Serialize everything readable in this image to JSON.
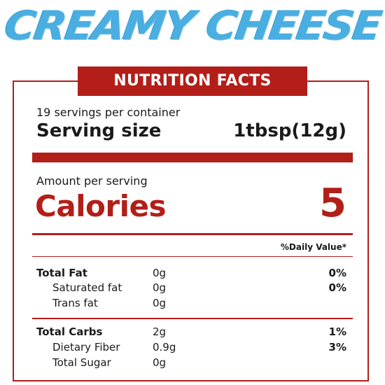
{
  "product_title": "CREAMY CHEESE",
  "banner_label": "NUTRITION FACTS",
  "serving": {
    "servings_text": "19 servings per container",
    "size_label": "Serving size",
    "size_value": "1tbsp(12g)"
  },
  "calories": {
    "amount_label": "Amount per serving",
    "label": "Calories",
    "value": "5"
  },
  "daily_value_header": "%Daily Value*",
  "nutrients": [
    {
      "name": "Total Fat",
      "amount": "0g",
      "dv": "0%"
    },
    {
      "name": "Saturated fat",
      "amount": "0g",
      "dv": "0%"
    },
    {
      "name": "Trans fat",
      "amount": "0g",
      "dv": ""
    },
    {
      "name": "Total Carbs",
      "amount": "2g",
      "dv": "1%"
    },
    {
      "name": "Dietary Fiber",
      "amount": "0.9g",
      "dv": "3%"
    },
    {
      "name": "Total Sugar",
      "amount": "0g",
      "dv": ""
    }
  ],
  "colors": {
    "title_blue": "#4aaee0",
    "label_red": "#b31e19"
  }
}
